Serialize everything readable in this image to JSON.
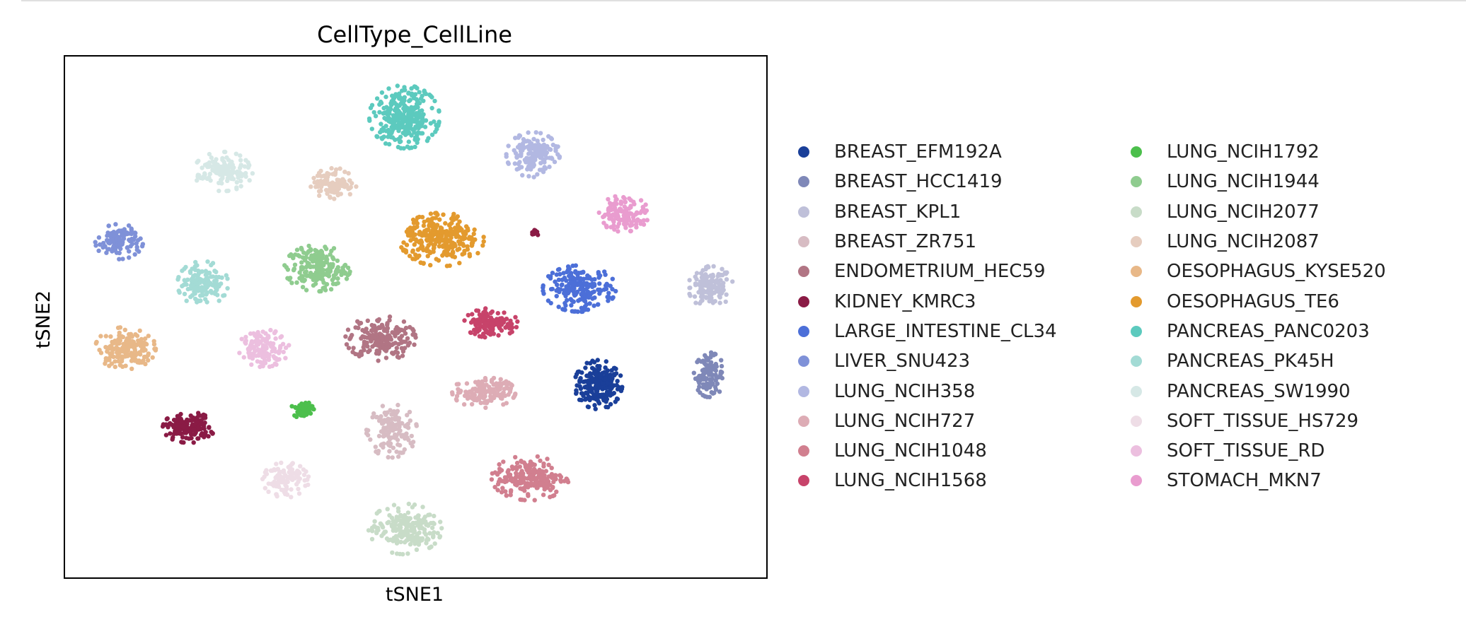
{
  "chart_data": {
    "type": "scatter",
    "title": "CellType_CellLine",
    "xlabel": "tSNE1",
    "ylabel": "tSNE2",
    "xlim": [
      0,
      1000
    ],
    "ylim": [
      0,
      745
    ],
    "grid": false,
    "xticks": false,
    "yticks": false,
    "legend_placement": "right, outside plot, two columns",
    "series": [
      {
        "name": "BREAST_EFM192A",
        "color": "#1a3f99",
        "cluster": {
          "cx": 760,
          "cy": 276,
          "rx": 34,
          "ry": 35,
          "n": 230
        }
      },
      {
        "name": "BREAST_HCC1419",
        "color": "#7f88b8",
        "cluster": {
          "cx": 918,
          "cy": 290,
          "rx": 22,
          "ry": 32,
          "n": 110
        }
      },
      {
        "name": "BREAST_KPL1",
        "color": "#bfc0d9",
        "cluster": {
          "cx": 920,
          "cy": 415,
          "rx": 32,
          "ry": 30,
          "n": 140
        }
      },
      {
        "name": "BREAST_ZR751",
        "color": "#d7bcc3",
        "cluster": {
          "cx": 466,
          "cy": 210,
          "rx": 36,
          "ry": 38,
          "n": 140
        }
      },
      {
        "name": "ENDOMETRIUM_HEC59",
        "color": "#b17584",
        "cluster": {
          "cx": 450,
          "cy": 342,
          "rx": 50,
          "ry": 32,
          "n": 190
        }
      },
      {
        "name": "KIDNEY_KMRC3",
        "color": "#8a1b45",
        "cluster": {
          "cx": 177,
          "cy": 215,
          "rx": 37,
          "ry": 22,
          "n": 150
        }
      },
      {
        "name": "LARGE_INTESTINE_CL34",
        "color": "#4c6fd8",
        "cluster": {
          "cx": 733,
          "cy": 413,
          "rx": 52,
          "ry": 33,
          "n": 210
        }
      },
      {
        "name": "LIVER_SNU423",
        "color": "#7f91d8",
        "cluster": {
          "cx": 78,
          "cy": 480,
          "rx": 34,
          "ry": 25,
          "n": 110
        }
      },
      {
        "name": "LUNG_NCIH358",
        "color": "#b2b8e2",
        "cluster": {
          "cx": 667,
          "cy": 604,
          "rx": 38,
          "ry": 32,
          "n": 150
        }
      },
      {
        "name": "LUNG_NCIH727",
        "color": "#ddacb5",
        "cluster": {
          "cx": 597,
          "cy": 265,
          "rx": 45,
          "ry": 22,
          "n": 150
        }
      },
      {
        "name": "LUNG_NCIH1048",
        "color": "#d17f8f",
        "cluster": {
          "cx": 663,
          "cy": 143,
          "rx": 55,
          "ry": 32,
          "n": 200
        }
      },
      {
        "name": "LUNG_NCIH1568",
        "color": "#c7436a",
        "cluster": {
          "cx": 607,
          "cy": 364,
          "rx": 38,
          "ry": 21,
          "n": 130
        }
      },
      {
        "name": "LUNG_NCIH1792",
        "color": "#4cbf4c",
        "cluster": {
          "cx": 339,
          "cy": 241,
          "rx": 16,
          "ry": 13,
          "n": 60
        }
      },
      {
        "name": "LUNG_NCIH1944",
        "color": "#8fcc8f",
        "cluster": {
          "cx": 360,
          "cy": 442,
          "rx": 47,
          "ry": 33,
          "n": 190
        }
      },
      {
        "name": "LUNG_NCIH2077",
        "color": "#c8dcc8",
        "cluster": {
          "cx": 485,
          "cy": 70,
          "rx": 52,
          "ry": 36,
          "n": 200
        }
      },
      {
        "name": "LUNG_NCIH2087",
        "color": "#e6cdbf",
        "cluster": {
          "cx": 383,
          "cy": 563,
          "rx": 33,
          "ry": 22,
          "n": 110
        }
      },
      {
        "name": "OESOPHAGUS_KYSE520",
        "color": "#e8b888",
        "cluster": {
          "cx": 87,
          "cy": 328,
          "rx": 43,
          "ry": 30,
          "n": 160
        }
      },
      {
        "name": "OESOPHAGUS_TE6",
        "color": "#e39a2e",
        "cluster": {
          "cx": 537,
          "cy": 483,
          "rx": 60,
          "ry": 38,
          "n": 280
        }
      },
      {
        "name": "PANCREAS_PANC0203",
        "color": "#5ccabe",
        "cluster": {
          "cx": 484,
          "cy": 658,
          "rx": 50,
          "ry": 45,
          "n": 300
        }
      },
      {
        "name": "PANCREAS_PK45H",
        "color": "#a3dbd5",
        "cluster": {
          "cx": 197,
          "cy": 420,
          "rx": 36,
          "ry": 32,
          "n": 140
        }
      },
      {
        "name": "PANCREAS_SW1990",
        "color": "#d6e8e6",
        "cluster": {
          "cx": 226,
          "cy": 580,
          "rx": 42,
          "ry": 28,
          "n": 140
        }
      },
      {
        "name": "SOFT_TISSUE_HS729",
        "color": "#eedde6",
        "cluster": {
          "cx": 315,
          "cy": 140,
          "rx": 33,
          "ry": 25,
          "n": 110
        }
      },
      {
        "name": "SOFT_TISSUE_RD",
        "color": "#ecbfdf",
        "cluster": {
          "cx": 284,
          "cy": 328,
          "rx": 36,
          "ry": 27,
          "n": 130
        }
      },
      {
        "name": "STOMACH_MKN7",
        "color": "#e99ccf",
        "cluster": {
          "cx": 796,
          "cy": 520,
          "rx": 36,
          "ry": 26,
          "n": 130
        }
      }
    ],
    "extra_points": [
      {
        "series": "KIDNEY_KMRC3",
        "cx": 669,
        "cy": 493,
        "rx": 6,
        "ry": 6,
        "n": 12
      }
    ]
  }
}
